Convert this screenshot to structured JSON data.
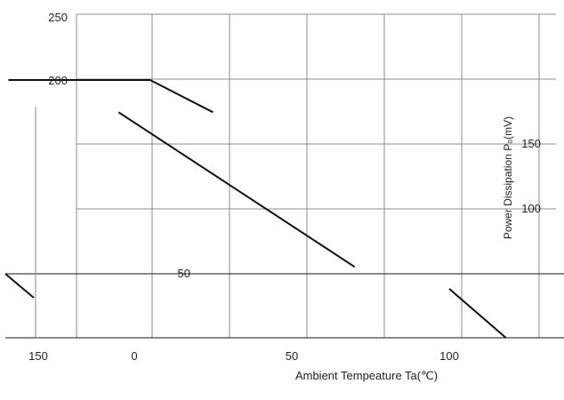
{
  "chart_data": {
    "type": "line",
    "xlabel": "Ambient Tempeature Ta(℃)",
    "ylabel": "Power Dissipation  P₀(mV)",
    "xlim": [
      -40,
      130
    ],
    "ylim": [
      0,
      250
    ],
    "x_ticks": [
      "150",
      "0",
      "50",
      "100"
    ],
    "y_ticks_left": [
      "250",
      "200",
      "50"
    ],
    "y_ticks_right": [
      "150",
      "100"
    ],
    "grid": true,
    "series": [
      {
        "x": [
          -40,
          5,
          25
        ],
        "y": [
          200,
          200,
          175
        ]
      },
      {
        "x": [
          -5,
          70
        ],
        "y": [
          175,
          55
        ]
      },
      {
        "x": [
          100,
          118
        ],
        "y": [
          38,
          0
        ]
      }
    ]
  },
  "colors": {
    "grid": "#8c8c8c",
    "line": "#111111",
    "axis": "#444444"
  }
}
